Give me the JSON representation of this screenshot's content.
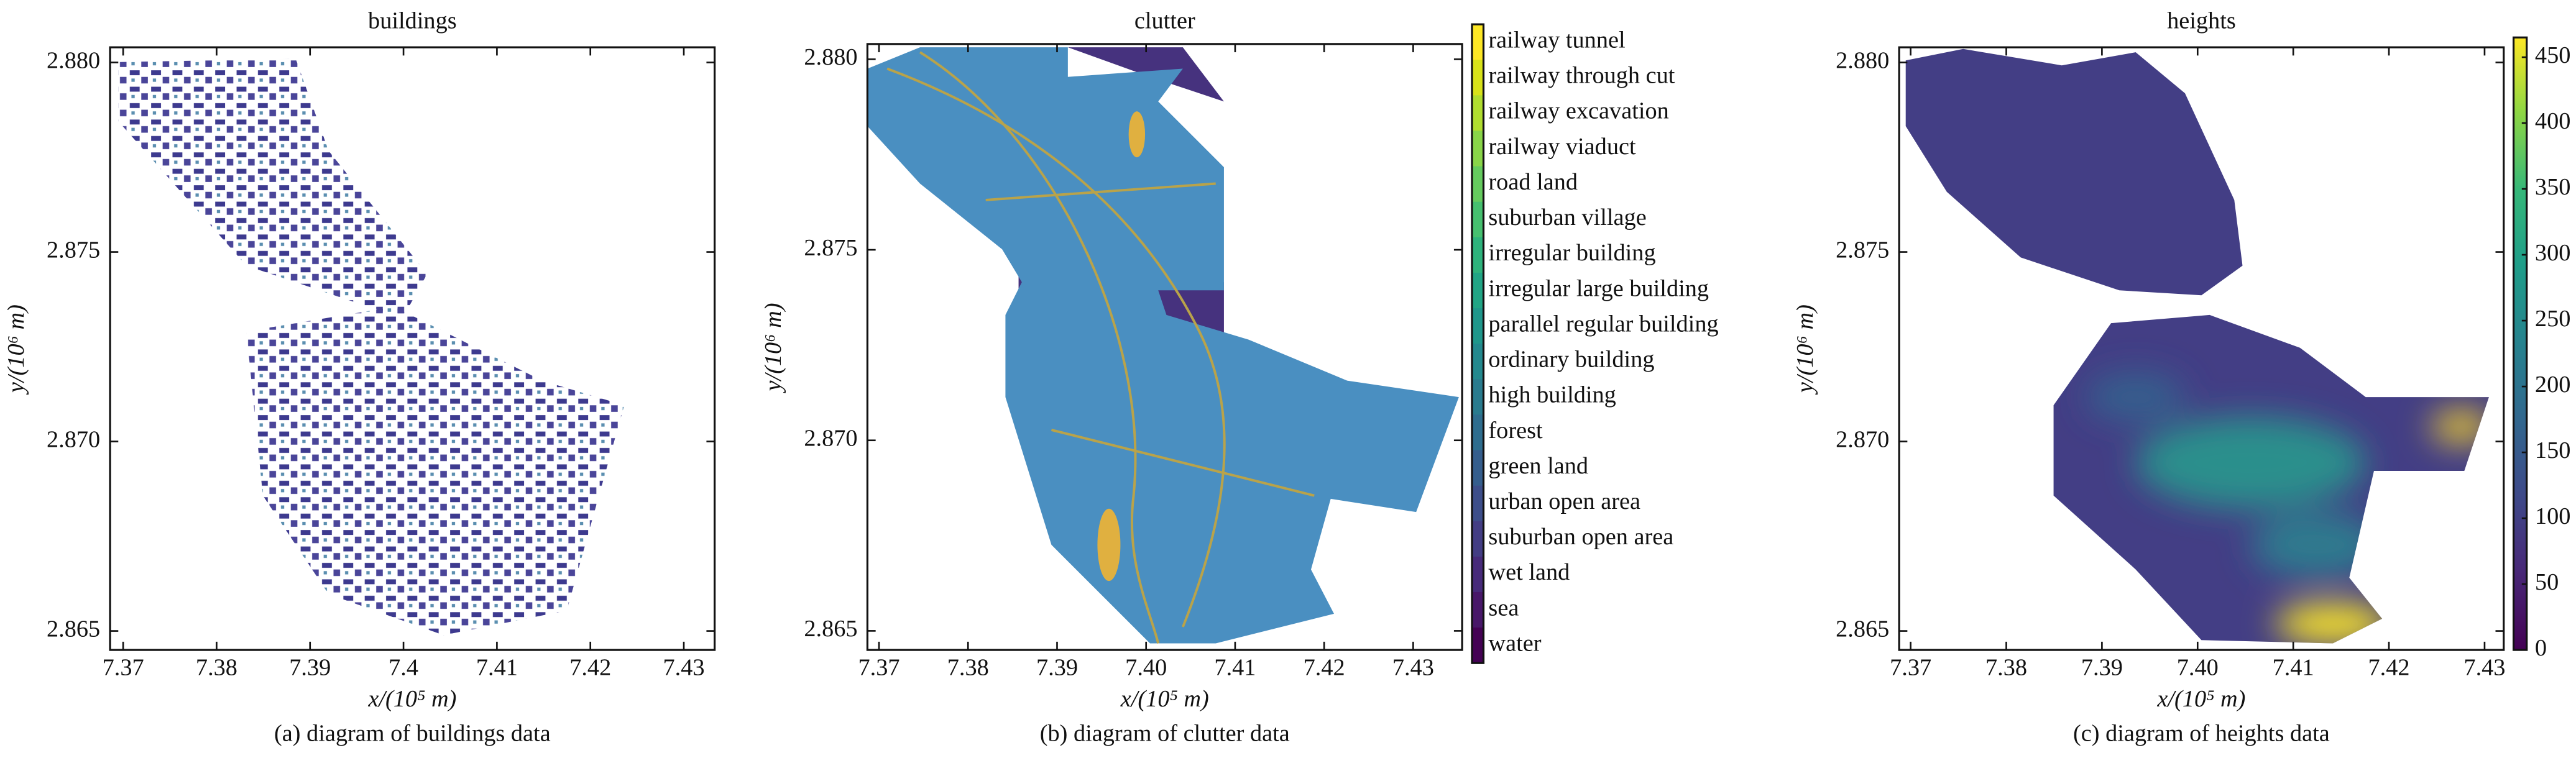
{
  "chart_data": [
    {
      "type": "map",
      "title": "buildings",
      "xlabel": "x/(10⁵ m)",
      "ylabel": "y/(10⁶ m)",
      "caption": "(a) diagram of buildings data",
      "xlim": [
        7.3686,
        7.4333
      ],
      "ylim": [
        2.8645,
        2.8804
      ],
      "xticks": [
        7.37,
        7.38,
        7.39,
        7.4,
        {
          "value": 7.41,
          "label": "7.41"
        },
        7.42,
        7.43
      ],
      "yticks": [
        2.865,
        {
          "value": 2.87,
          "label": "2.870"
        },
        2.875,
        {
          "value": 2.88,
          "label": "2.880"
        }
      ]
    },
    {
      "type": "map",
      "title": "clutter",
      "xlabel": "x/(10⁵ m)",
      "ylabel": "y/(10⁶ m)",
      "caption": "(b) diagram of clutter data",
      "xlim": [
        7.3687,
        7.4355
      ],
      "ylim": [
        2.8645,
        2.8804
      ],
      "xticks": [
        7.37,
        7.38,
        7.39,
        {
          "value": 7.4,
          "label": "7.40"
        },
        7.41,
        7.42,
        7.43
      ],
      "yticks": [
        2.865,
        {
          "value": 2.87,
          "label": "2.870"
        },
        2.875,
        {
          "value": 2.88,
          "label": "2.880"
        }
      ],
      "colorbar": {
        "categories": [
          "railway tunnel",
          "railway through cut",
          "railway excavation",
          "railway viaduct",
          "road land",
          "suburban village",
          "irregular building",
          "irregular large building",
          "parallel regular building",
          "ordinary building",
          "high building",
          "forest",
          "green land",
          "urban open area",
          "suburban open area",
          "wet land",
          "sea",
          "water"
        ],
        "colors": [
          "#fde725",
          "#d8e219",
          "#b0dd2f",
          "#89d548",
          "#65cb5e",
          "#46c06f",
          "#2eb37c",
          "#21a585",
          "#1f978b",
          "#23898e",
          "#297b8e",
          "#2e6d8e",
          "#355e8d",
          "#3d4e8a",
          "#433d84",
          "#472a7a",
          "#481769",
          "#440154"
        ]
      }
    },
    {
      "type": "map",
      "title": "heights",
      "xlabel": "x/(10⁵ m)",
      "ylabel": "y/(10⁶ m)",
      "caption": "(c) diagram of heights data",
      "xlim": [
        7.3688,
        7.432
      ],
      "ylim": [
        2.8645,
        2.8804
      ],
      "xticks": [
        7.37,
        7.38,
        7.39,
        {
          "value": 7.4,
          "label": "7.40"
        },
        7.41,
        7.42,
        7.43
      ],
      "yticks": [
        2.865,
        {
          "value": 2.87,
          "label": "2.870"
        },
        2.875,
        {
          "value": 2.88,
          "label": "2.880"
        }
      ],
      "colorbar": {
        "clim": [
          0,
          465
        ],
        "ticks": [
          0,
          50,
          100,
          150,
          200,
          250,
          300,
          350,
          400,
          450
        ],
        "colormap": "viridis"
      }
    }
  ]
}
